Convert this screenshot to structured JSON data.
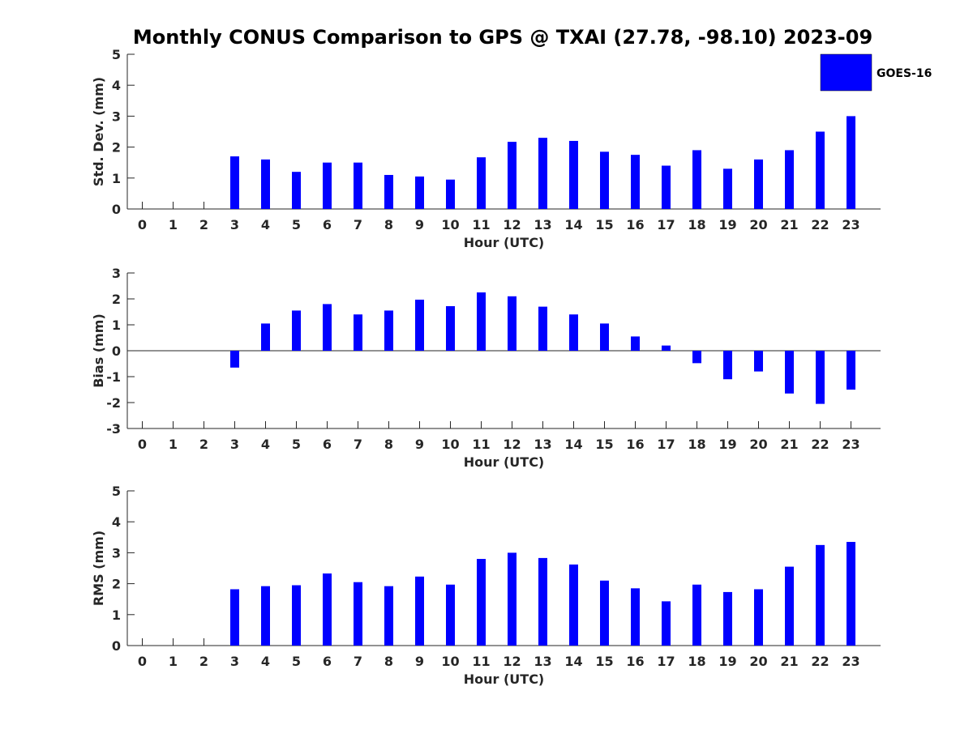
{
  "chart_data": {
    "title": "Monthly CONUS Comparison to GPS @ TXAI (27.78, -98.10) 2023-09",
    "type": "bar",
    "bar_color": "#0000ff",
    "legend": {
      "entries": [
        "GOES-16"
      ],
      "placement": "top-right"
    },
    "categories": [
      "0",
      "1",
      "2",
      "3",
      "4",
      "5",
      "6",
      "7",
      "8",
      "9",
      "10",
      "11",
      "12",
      "13",
      "14",
      "15",
      "16",
      "17",
      "18",
      "19",
      "20",
      "21",
      "22",
      "23"
    ],
    "panels": [
      {
        "type": "bar",
        "xlabel": "Hour (UTC)",
        "ylabel": "Std. Dev. (mm)",
        "ylim": [
          0,
          5
        ],
        "yticks": [
          "0",
          "1",
          "2",
          "3",
          "4",
          "5"
        ],
        "series": [
          {
            "name": "GOES-16",
            "values": [
              null,
              null,
              null,
              1.7,
              1.6,
              1.2,
              1.5,
              1.5,
              1.1,
              1.05,
              0.95,
              1.67,
              2.17,
              2.3,
              2.2,
              1.85,
              1.75,
              1.4,
              1.9,
              1.3,
              1.6,
              1.9,
              2.5,
              3.0
            ]
          }
        ]
      },
      {
        "type": "bar",
        "xlabel": "Hour (UTC)",
        "ylabel": "Bias (mm)",
        "ylim": [
          -3,
          3
        ],
        "yticks": [
          "-3",
          "-2",
          "-1",
          "0",
          "1",
          "2",
          "3"
        ],
        "series": [
          {
            "name": "GOES-16",
            "values": [
              null,
              null,
              null,
              -0.65,
              1.05,
              1.55,
              1.8,
              1.4,
              1.55,
              1.97,
              1.72,
              2.25,
              2.1,
              1.7,
              1.4,
              1.05,
              0.55,
              0.2,
              -0.48,
              -1.1,
              -0.8,
              -1.65,
              -2.05,
              -1.5
            ]
          }
        ]
      },
      {
        "type": "bar",
        "xlabel": "Hour (UTC)",
        "ylabel": "RMS (mm)",
        "ylim": [
          0,
          5
        ],
        "yticks": [
          "0",
          "1",
          "2",
          "3",
          "4",
          "5"
        ],
        "series": [
          {
            "name": "GOES-16",
            "values": [
              null,
              null,
              null,
              1.82,
              1.92,
              1.95,
              2.33,
              2.05,
              1.92,
              2.23,
              1.97,
              2.8,
              3.0,
              2.83,
              2.62,
              2.1,
              1.85,
              1.43,
              1.97,
              1.73,
              1.82,
              2.55,
              3.25,
              3.35
            ]
          }
        ]
      }
    ]
  }
}
